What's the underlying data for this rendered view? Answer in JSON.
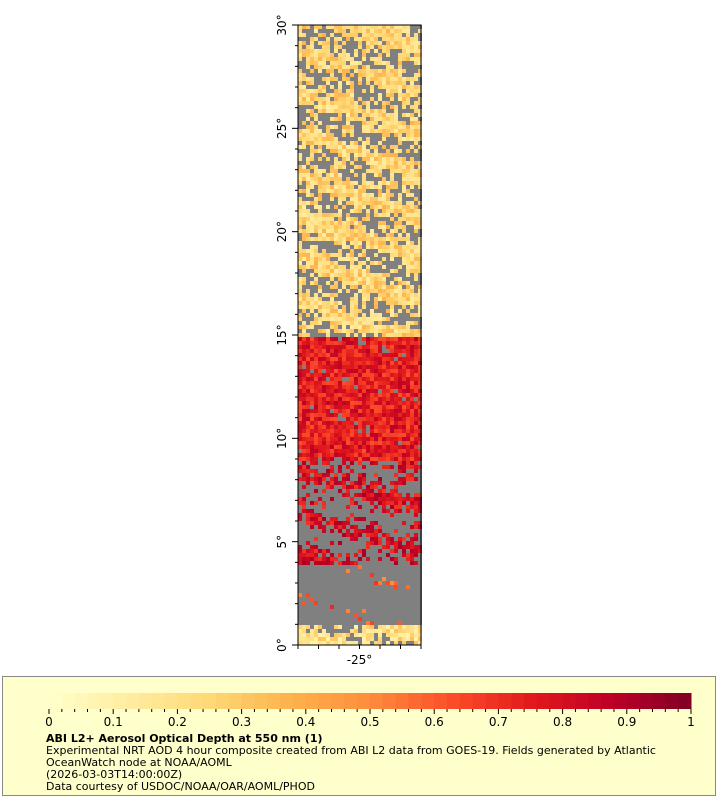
{
  "map": {
    "lat_labels": [
      {
        "value": 0,
        "label": "0°"
      },
      {
        "value": 5,
        "label": "5°"
      },
      {
        "value": 10,
        "label": "10°"
      },
      {
        "value": 15,
        "label": "15°"
      },
      {
        "value": 20,
        "label": "20°"
      },
      {
        "value": 25,
        "label": "25°"
      },
      {
        "value": 30,
        "label": "30°"
      }
    ],
    "lon_labels": [
      {
        "value": -25,
        "label": "-25°"
      }
    ],
    "lat_range": [
      0,
      30
    ],
    "lon_range": [
      -28,
      -22
    ],
    "missing_color": "#808080",
    "aod_field_description_bands": [
      {
        "lat_from": 15,
        "lat_to": 30,
        "aod_typical": 0.25,
        "cloud_fraction": 0.4
      },
      {
        "lat_from": 9,
        "lat_to": 15,
        "aod_typical": 0.75,
        "cloud_fraction": 0.1
      },
      {
        "lat_from": 4,
        "lat_to": 9,
        "aod_typical": 0.8,
        "cloud_fraction": 0.5
      },
      {
        "lat_from": 1,
        "lat_to": 4,
        "aod_typical": 0.6,
        "cloud_fraction": 0.85
      },
      {
        "lat_from": 0,
        "lat_to": 1,
        "aod_typical": 0.2,
        "cloud_fraction": 0.3
      }
    ]
  },
  "colorbar": {
    "min": 0,
    "max": 1,
    "ticks": [
      "0",
      "0.1",
      "0.2",
      "0.3",
      "0.4",
      "0.5",
      "0.6",
      "0.7",
      "0.8",
      "0.9",
      "1"
    ],
    "colors": [
      "#ffffcc",
      "#ffeda0",
      "#fed976",
      "#feb24c",
      "#fd8d3c",
      "#fc4e2a",
      "#e31a1c",
      "#bd0026",
      "#800026"
    ]
  },
  "legend": {
    "title": "ABI L2+ Aerosol Optical Depth at 550 nm (1)",
    "line1": "Experimental NRT AOD 4 hour composite created from ABI L2 data from GOES-19. Fields generated by Atlantic OceanWatch node at NOAA/AOML",
    "line2": "(2026-03-03T14:00:00Z)",
    "line3": "Data courtesy of USDOC/NOAA/OAR/AOML/PHOD"
  }
}
